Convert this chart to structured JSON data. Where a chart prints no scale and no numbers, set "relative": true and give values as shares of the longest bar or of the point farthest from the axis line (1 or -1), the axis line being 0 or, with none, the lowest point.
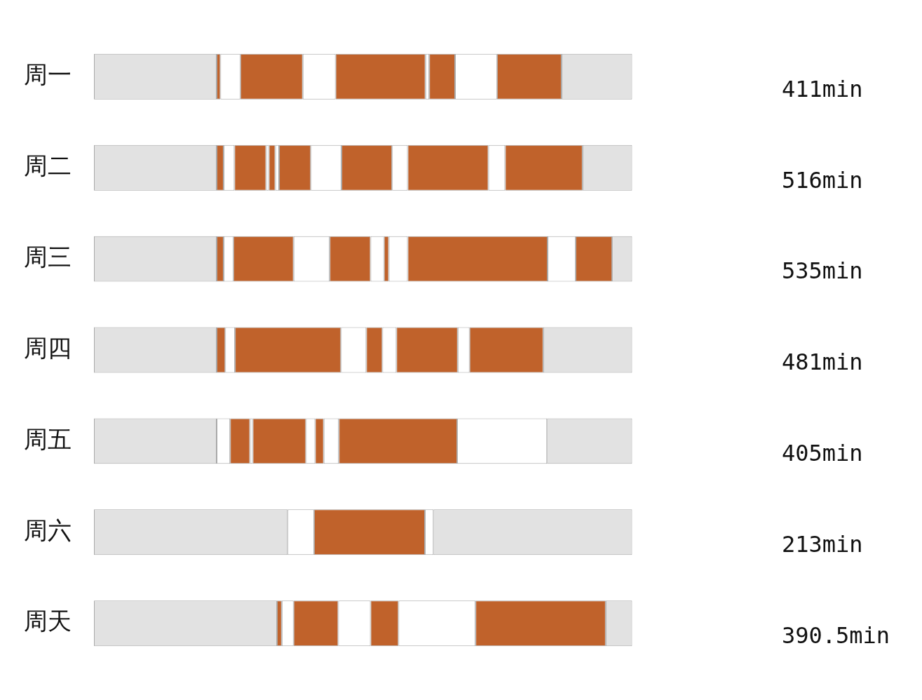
{
  "chart_data": {
    "type": "bar",
    "orientation": "horizontal",
    "stacked": true,
    "relative": true,
    "grid": false,
    "legend": false,
    "categories": [
      "周一",
      "周二",
      "周三",
      "周四",
      "周五",
      "周六",
      "周天"
    ],
    "series": [
      {
        "values": [
          0.228,
          0.228,
          0.228,
          0.228,
          0.228,
          0.36,
          0.34
        ],
        "colors": [
          "#e2e2e2",
          "#e2e2e2",
          "#e2e2e2",
          "#e2e2e2",
          "#e2e2e2",
          "#e2e2e2",
          "#e2e2e2"
        ]
      },
      {
        "values": [
          0.007,
          0.013,
          0.013,
          0.016,
          0.025,
          0.049,
          0.009
        ],
        "colors": [
          "#c0622b",
          "#c0622b",
          "#c0622b",
          "#c0622b",
          "#ffffff",
          "#ffffff",
          "#c0622b"
        ]
      },
      {
        "values": [
          0.037,
          0.02,
          0.018,
          0.018,
          0.037,
          0.206,
          0.022
        ],
        "colors": [
          "#ffffff",
          "#ffffff",
          "#ffffff",
          "#ffffff",
          "#c0622b",
          "#c0622b",
          "#ffffff"
        ]
      },
      {
        "values": [
          0.116,
          0.059,
          0.112,
          0.197,
          0.005,
          0.016,
          0.083
        ],
        "colors": [
          "#c0622b",
          "#c0622b",
          "#c0622b",
          "#c0622b",
          "#ffffff",
          "#ffffff",
          "#c0622b"
        ]
      },
      {
        "values": [
          0.061,
          0.005,
          0.067,
          0.047,
          0.099,
          0.369,
          0.06
        ],
        "colors": [
          "#ffffff",
          "#ffffff",
          "#ffffff",
          "#ffffff",
          "#c0622b",
          "#e2e2e2",
          "#ffffff"
        ]
      },
      {
        "values": [
          0.167,
          0.012,
          0.076,
          0.03,
          0.017,
          null,
          0.052
        ],
        "colors": [
          "#c0622b",
          "#c0622b",
          "#c0622b",
          "#c0622b",
          "#ffffff",
          null,
          "#c0622b"
        ]
      },
      {
        "values": [
          0.007,
          0.007,
          0.025,
          0.026,
          0.016,
          null,
          0.143
        ],
        "colors": [
          "#ffffff",
          "#ffffff",
          "#ffffff",
          "#ffffff",
          "#c0622b",
          null,
          "#ffffff"
        ]
      },
      {
        "values": [
          0.048,
          0.059,
          0.009,
          0.114,
          0.028,
          null,
          0.242
        ],
        "colors": [
          "#c0622b",
          "#c0622b",
          "#c0622b",
          "#c0622b",
          "#ffffff",
          null,
          "#c0622b"
        ]
      },
      {
        "values": [
          0.078,
          0.057,
          0.035,
          0.022,
          0.22,
          null,
          0.049
        ],
        "colors": [
          "#ffffff",
          "#ffffff",
          "#ffffff",
          "#ffffff",
          "#c0622b",
          null,
          "#e2e2e2"
        ]
      },
      {
        "values": [
          0.12,
          0.094,
          0.26,
          0.137,
          0.167,
          null,
          null
        ],
        "colors": [
          "#c0622b",
          "#c0622b",
          "#c0622b",
          "#c0622b",
          "#ffffff",
          null,
          null
        ]
      },
      {
        "values": [
          0.131,
          0.029,
          0.052,
          0.165,
          0.158,
          null,
          null
        ],
        "colors": [
          "#e2e2e2",
          "#ffffff",
          "#ffffff",
          "#e2e2e2",
          "#e2e2e2",
          null,
          null
        ]
      },
      {
        "values": [
          null,
          0.15,
          0.068,
          null,
          null,
          null,
          null
        ],
        "colors": [
          null,
          "#c0622b",
          "#c0622b",
          null,
          null,
          null,
          null
        ]
      },
      {
        "values": [
          null,
          0.031,
          0.037,
          null,
          null,
          null,
          null
        ],
        "colors": [
          null,
          "#ffffff",
          "#e2e2e2",
          null,
          null,
          null,
          null
        ]
      },
      {
        "values": [
          null,
          0.144,
          null,
          null,
          null,
          null,
          null
        ],
        "colors": [
          null,
          "#c0622b",
          null,
          null,
          null,
          null,
          null
        ]
      },
      {
        "values": [
          null,
          0.092,
          null,
          null,
          null,
          null,
          null
        ],
        "colors": [
          null,
          "#e2e2e2",
          null,
          null,
          null,
          null,
          null
        ]
      }
    ],
    "annotations": [
      "411min",
      "516min",
      "535min",
      "481min",
      "405min",
      "213min",
      "390.5min"
    ]
  }
}
